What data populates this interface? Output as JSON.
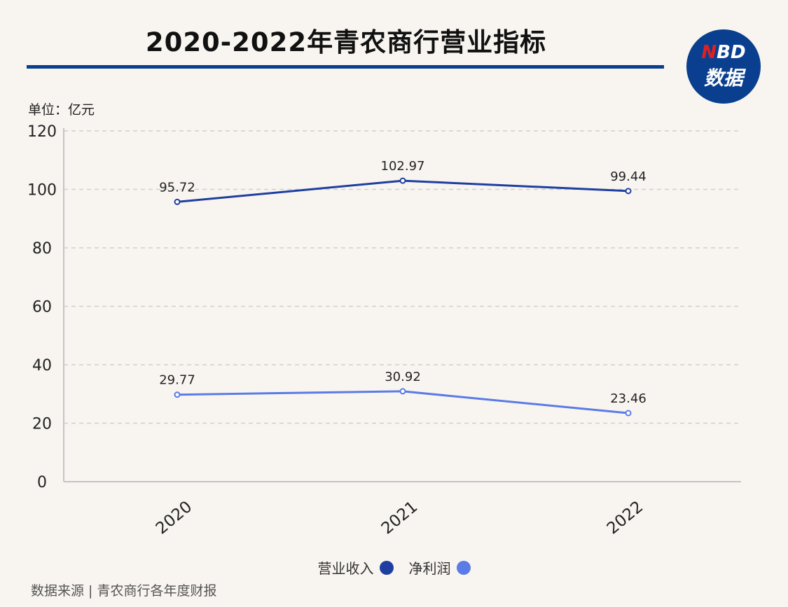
{
  "header": {
    "title": "2020-2022年青农商行营业指标",
    "logo_top": "NBD",
    "logo_bottom": "数据"
  },
  "unit_label": "单位：亿元",
  "source": "数据来源 | 青农商行各年度财报",
  "colors": {
    "accent": "#0a3f8f",
    "revenue": "#1f3fa0",
    "profit": "#5b7be6",
    "background": "#f8f5f1"
  },
  "chart_data": {
    "type": "line",
    "categories": [
      "2020",
      "2021",
      "2022"
    ],
    "series": [
      {
        "name": "营业收入",
        "values": [
          95.72,
          102.97,
          99.44
        ],
        "labels": [
          "95.72",
          "102.97",
          "99.44"
        ],
        "color": "#1f3fa0"
      },
      {
        "name": "净利润",
        "values": [
          29.77,
          30.92,
          23.46
        ],
        "labels": [
          "29.77",
          "30.92",
          "23.46"
        ],
        "color": "#5b7be6"
      }
    ],
    "yticks": [
      "0",
      "20",
      "40",
      "60",
      "80",
      "100",
      "120"
    ],
    "ylim": [
      0,
      120
    ],
    "grid": true,
    "legend_position": "bottom"
  }
}
